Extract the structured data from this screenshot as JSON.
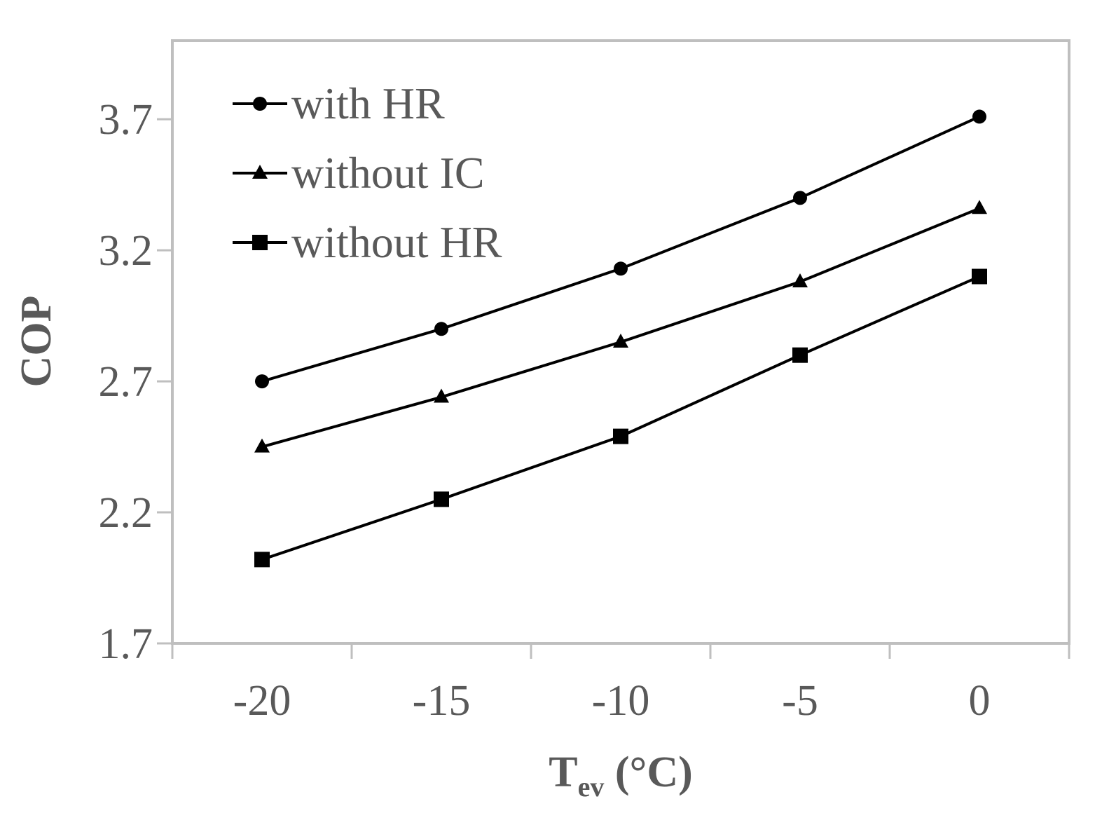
{
  "chart_data": {
    "type": "line",
    "title": "",
    "xlabel": {
      "main": "T",
      "subscript": "ev",
      "suffix": " (°C)"
    },
    "ylabel": "COP",
    "x": [
      -20,
      -15,
      -10,
      -5,
      0
    ],
    "xlim": [
      -22.5,
      2.5
    ],
    "xticks": [
      "-20",
      "-15",
      "-10",
      "-5",
      "0"
    ],
    "ylim": [
      1.7,
      4.0
    ],
    "yticks": [
      "1.7",
      "2.2",
      "2.7",
      "3.2",
      "3.7"
    ],
    "grid": false,
    "legend_position": "top-left",
    "series": [
      {
        "name": "with HR",
        "marker": "circle",
        "values": [
          2.7,
          2.9,
          3.13,
          3.4,
          3.71
        ]
      },
      {
        "name": "without IC",
        "marker": "triangle",
        "values": [
          2.45,
          2.64,
          2.85,
          3.08,
          3.36
        ]
      },
      {
        "name": "without HR",
        "marker": "square",
        "values": [
          2.02,
          2.25,
          2.49,
          2.8,
          3.1
        ]
      }
    ],
    "colors": {
      "series": "#000000",
      "frame": "#bfbfbf",
      "text": "#595959"
    }
  }
}
